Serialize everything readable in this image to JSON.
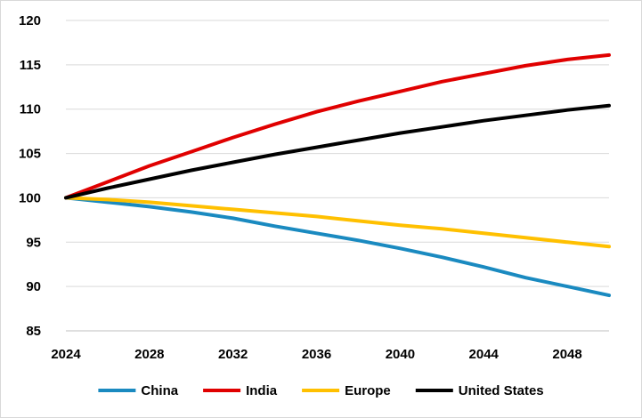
{
  "chart_data": {
    "type": "line",
    "title": "",
    "xlabel": "",
    "ylabel": "",
    "xlim": [
      2024,
      2050
    ],
    "ylim": [
      85,
      120
    ],
    "x_ticks": [
      "2024",
      "2028",
      "2032",
      "2036",
      "2040",
      "2044",
      "2048"
    ],
    "y_ticks": [
      "85",
      "90",
      "95",
      "100",
      "105",
      "110",
      "115",
      "120"
    ],
    "grid": "horizontal",
    "legend_position": "bottom",
    "x": [
      2024,
      2026,
      2028,
      2030,
      2032,
      2034,
      2036,
      2038,
      2040,
      2042,
      2044,
      2046,
      2048,
      2050
    ],
    "series": [
      {
        "name": "China",
        "color": "#1a8ac0",
        "values": [
          100,
          99.5,
          99.0,
          98.4,
          97.7,
          96.8,
          96.0,
          95.2,
          94.3,
          93.3,
          92.2,
          91.0,
          90.0,
          89.0
        ]
      },
      {
        "name": "India",
        "color": "#e00000",
        "values": [
          100,
          101.8,
          103.6,
          105.2,
          106.8,
          108.3,
          109.7,
          110.9,
          112.0,
          113.1,
          114.0,
          114.9,
          115.6,
          116.1
        ]
      },
      {
        "name": "Europe",
        "color": "#ffc000",
        "values": [
          100,
          99.8,
          99.5,
          99.1,
          98.7,
          98.3,
          97.9,
          97.4,
          96.9,
          96.5,
          96.0,
          95.5,
          95.0,
          94.5
        ]
      },
      {
        "name": "United States",
        "color": "#000000",
        "values": [
          100,
          101.1,
          102.1,
          103.1,
          104.0,
          104.9,
          105.7,
          106.5,
          107.3,
          108.0,
          108.7,
          109.3,
          109.9,
          110.4
        ]
      }
    ]
  }
}
